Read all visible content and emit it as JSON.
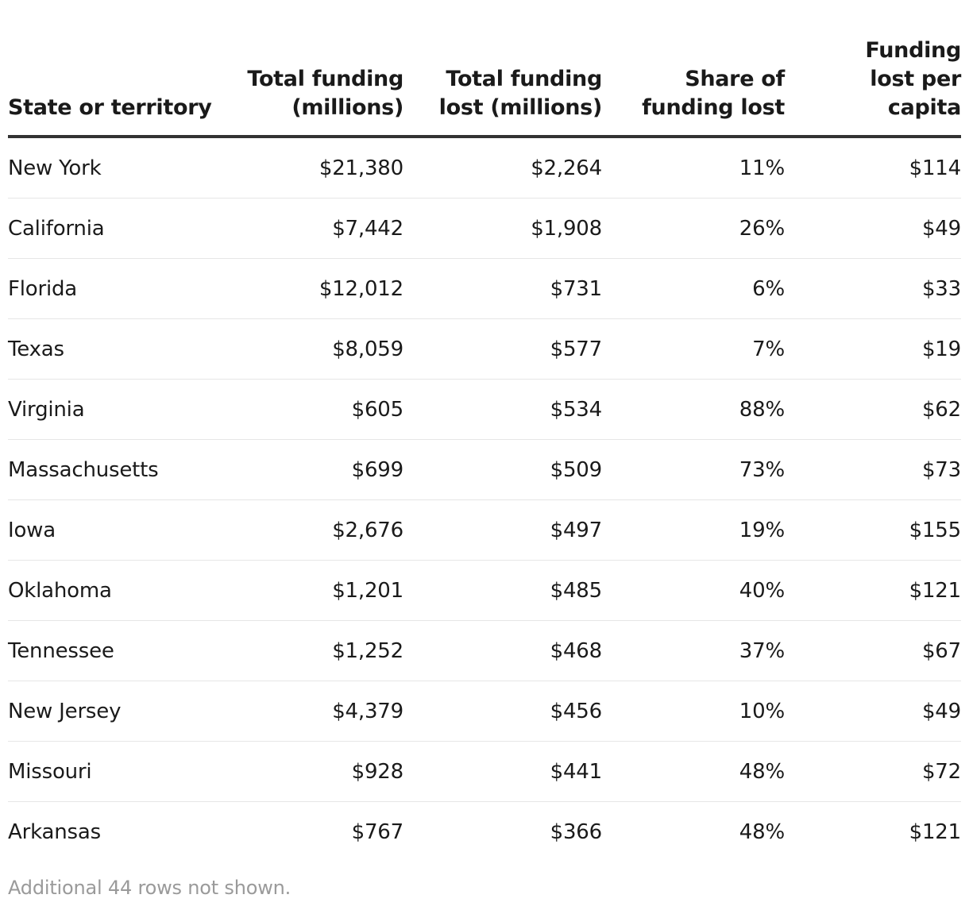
{
  "chart_data": {
    "type": "table",
    "columns": [
      {
        "key": "state",
        "label_lines": [
          "State or territory"
        ],
        "align": "left"
      },
      {
        "key": "total_funding",
        "label_lines": [
          "Total funding",
          "(millions)"
        ],
        "align": "right"
      },
      {
        "key": "funding_lost",
        "label_lines": [
          "Total funding",
          "lost (millions)"
        ],
        "align": "right"
      },
      {
        "key": "share_lost",
        "label_lines": [
          "Share of",
          "funding lost"
        ],
        "align": "right"
      },
      {
        "key": "lost_per_capita",
        "label_lines": [
          "Funding",
          "lost per",
          "capita"
        ],
        "align": "right"
      }
    ],
    "rows": [
      {
        "state": "New York",
        "total_funding": "$21,380",
        "funding_lost": "$2,264",
        "share_lost": "11%",
        "lost_per_capita": "$114"
      },
      {
        "state": "California",
        "total_funding": "$7,442",
        "funding_lost": "$1,908",
        "share_lost": "26%",
        "lost_per_capita": "$49"
      },
      {
        "state": "Florida",
        "total_funding": "$12,012",
        "funding_lost": "$731",
        "share_lost": "6%",
        "lost_per_capita": "$33"
      },
      {
        "state": "Texas",
        "total_funding": "$8,059",
        "funding_lost": "$577",
        "share_lost": "7%",
        "lost_per_capita": "$19"
      },
      {
        "state": "Virginia",
        "total_funding": "$605",
        "funding_lost": "$534",
        "share_lost": "88%",
        "lost_per_capita": "$62"
      },
      {
        "state": "Massachusetts",
        "total_funding": "$699",
        "funding_lost": "$509",
        "share_lost": "73%",
        "lost_per_capita": "$73"
      },
      {
        "state": "Iowa",
        "total_funding": "$2,676",
        "funding_lost": "$497",
        "share_lost": "19%",
        "lost_per_capita": "$155"
      },
      {
        "state": "Oklahoma",
        "total_funding": "$1,201",
        "funding_lost": "$485",
        "share_lost": "40%",
        "lost_per_capita": "$121"
      },
      {
        "state": "Tennessee",
        "total_funding": "$1,252",
        "funding_lost": "$468",
        "share_lost": "37%",
        "lost_per_capita": "$67"
      },
      {
        "state": "New Jersey",
        "total_funding": "$4,379",
        "funding_lost": "$456",
        "share_lost": "10%",
        "lost_per_capita": "$49"
      },
      {
        "state": "Missouri",
        "total_funding": "$928",
        "funding_lost": "$441",
        "share_lost": "48%",
        "lost_per_capita": "$72"
      },
      {
        "state": "Arkansas",
        "total_funding": "$767",
        "funding_lost": "$366",
        "share_lost": "48%",
        "lost_per_capita": "$121"
      }
    ]
  },
  "footnote": "Additional 44 rows not shown.",
  "colors": {
    "text": "#1a1a1a",
    "header_rule": "#333333",
    "row_rule": "#e6e6e6",
    "footnote": "#9a9a9a"
  }
}
